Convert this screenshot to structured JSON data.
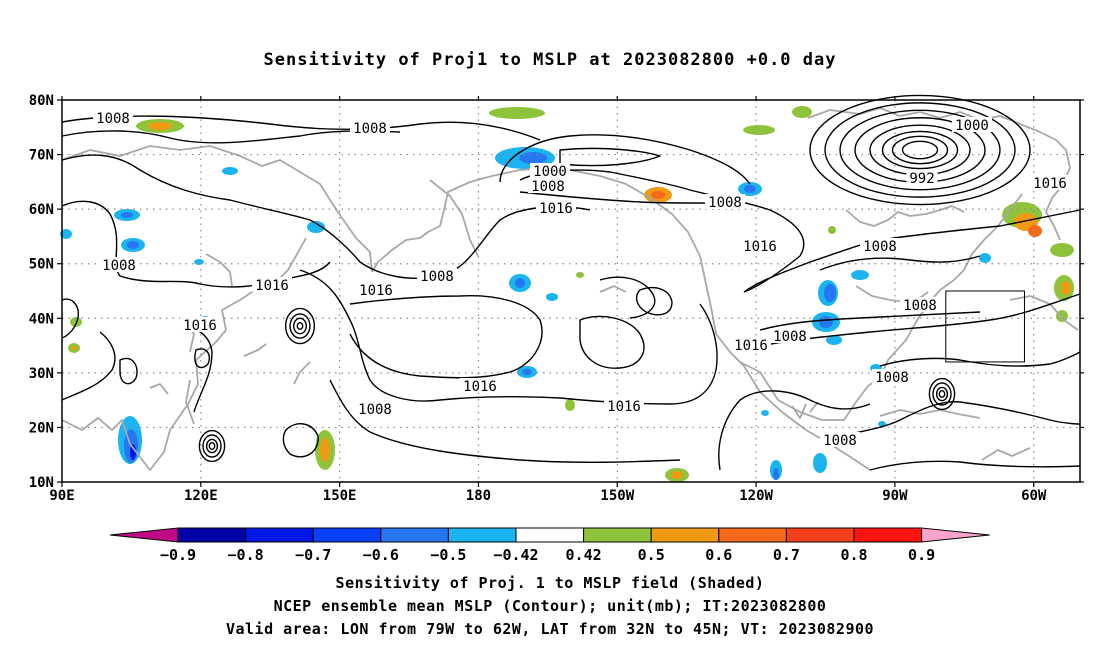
{
  "title": "Sensitivity of Proj1 to MSLP at 2023082800 +0.0 day",
  "map": {
    "lon_range": [
      "90E",
      "310E"
    ],
    "lat_range": [
      "10N",
      "80N"
    ],
    "lat_labels": [
      "80N",
      "70N",
      "60N",
      "50N",
      "40N",
      "30N",
      "20N",
      "10N"
    ],
    "lon_labels": [
      "90E",
      "120E",
      "150E",
      "180",
      "150W",
      "120W",
      "90W",
      "60W"
    ],
    "grid": "dotted",
    "valid_box": {
      "lon_from": "79W",
      "lon_to": "62W",
      "lat_from": "32N",
      "lat_to": "45N"
    },
    "contour_labels": [
      "1008",
      "1008",
      "1000",
      "1008",
      "1016",
      "1008",
      "1016",
      "1008",
      "1016",
      "1016",
      "1008",
      "1016",
      "1008",
      "1016",
      "1016",
      "1008",
      "1016",
      "1008",
      "992",
      "1000",
      "1016",
      "1008",
      "1008",
      "1008"
    ],
    "colors": {
      "coast": "#a8a8a8",
      "contour": "#000000",
      "grid": "#8a8a8a",
      "box": "#000000"
    }
  },
  "colorbar": {
    "labels": [
      "−0.9",
      "−0.8",
      "−0.7",
      "−0.6",
      "−0.5",
      "−0.42",
      "0.42",
      "0.5",
      "0.6",
      "0.7",
      "0.8",
      "0.9"
    ],
    "colors": [
      "#c10a86",
      "#0000a8",
      "#0018e6",
      "#0a40f8",
      "#2676f2",
      "#1ab4f0",
      "#ffffff",
      "#8ec43a",
      "#f09a14",
      "#f56a1a",
      "#f63f1c",
      "#ff1414",
      "#f8a4cc"
    ]
  },
  "footer": {
    "line1": "Sensitivity of Proj. 1 to MSLP field (Shaded)",
    "line2": "NCEP ensemble mean MSLP (Contour); unit(mb); IT:2023082800",
    "line3": "Valid area: LON from 79W to 62W, LAT from 32N to 45N; VT: 2023082900"
  }
}
